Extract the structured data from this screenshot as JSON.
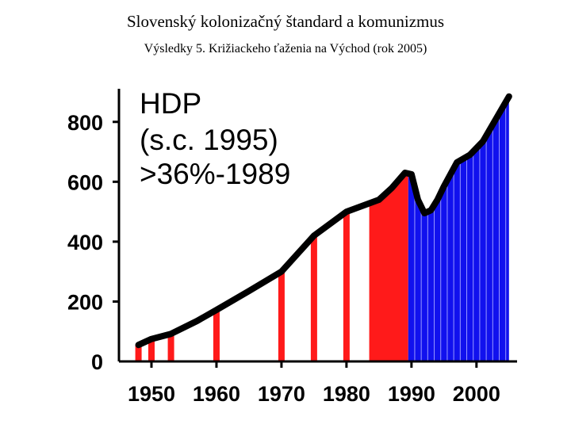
{
  "slide": {
    "title": "Slovenský kolonizačný štandard a komunizmus",
    "subtitle": "Výsledky 5. Križiackeho ťaženia na Východ (rok 2005)"
  },
  "chart_data": {
    "type": "area",
    "title": "",
    "xlabel": "",
    "ylabel": "",
    "annotation_lines": [
      "HDP",
      "(s.c. 1995)",
      ">36%-1989"
    ],
    "xlim": [
      1945,
      2006
    ],
    "ylim": [
      0,
      900
    ],
    "x_ticks": [
      1950,
      1960,
      1970,
      1980,
      1990,
      2000
    ],
    "y_ticks": [
      0,
      200,
      400,
      600,
      800
    ],
    "grid": false,
    "line_color": "#000000",
    "colors": {
      "red": "#ff1a1a",
      "blue": "#1111ee"
    },
    "series": [
      {
        "points": [
          [
            1948,
            55
          ],
          [
            1950,
            75
          ],
          [
            1953,
            92
          ],
          [
            1957,
            135
          ],
          [
            1960,
            172
          ],
          [
            1965,
            235
          ],
          [
            1970,
            300
          ],
          [
            1975,
            420
          ],
          [
            1980,
            500
          ],
          [
            1985,
            540
          ],
          [
            1987,
            580
          ],
          [
            1989,
            630
          ],
          [
            1990,
            625
          ],
          [
            1991,
            540
          ],
          [
            1992,
            495
          ],
          [
            1993,
            505
          ],
          [
            1994,
            540
          ],
          [
            1995,
            585
          ],
          [
            1996,
            625
          ],
          [
            1997,
            665
          ],
          [
            1999,
            690
          ],
          [
            2001,
            735
          ],
          [
            2003,
            810
          ],
          [
            2005,
            885
          ]
        ]
      }
    ],
    "red_bars": [
      1948,
      1950,
      1953,
      1960,
      1970,
      1975,
      1980
    ],
    "red_fill_range": [
      1983.5,
      1989.5
    ],
    "blue_fill_range": [
      1989.5,
      2005
    ]
  }
}
